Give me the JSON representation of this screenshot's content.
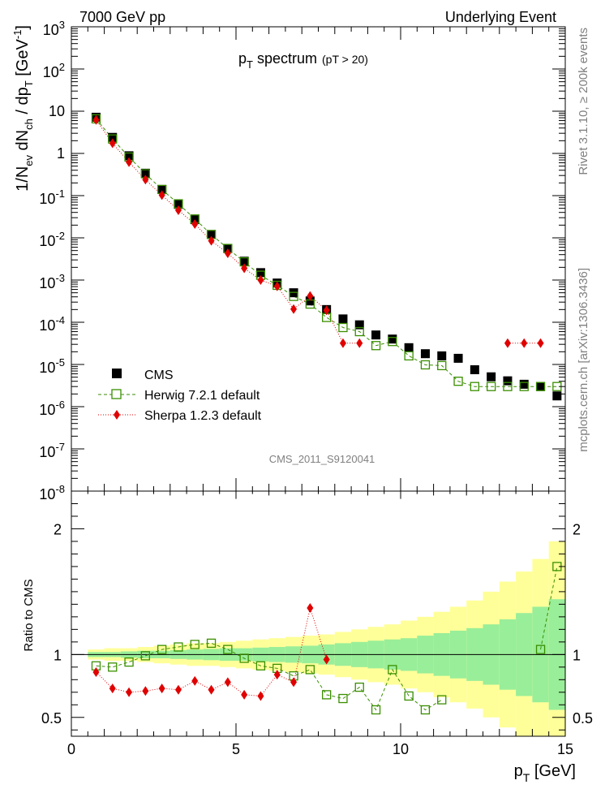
{
  "header": {
    "left": "7000 GeV pp",
    "right": "Underlying Event"
  },
  "side_labels": {
    "rivet": "Rivet 3.1.10, ≥ 200k events",
    "mcplots": "mcplots.cern.ch [arXiv:1306.3436]"
  },
  "chart_data": {
    "type": "scatter",
    "title": "p_T spectrum (pT > 20)",
    "title_main": "p",
    "title_sub": "T",
    "title_rest": " spectrum",
    "title_note": "(pT > 20)",
    "analysis_id": "CMS_2011_S9120041",
    "xlabel": "p_T [GeV]",
    "xlabel_main": "p",
    "xlabel_sub": "T",
    "xlabel_unit": " [GeV]",
    "ylabel": "1/N_ev dN_ch / dp_T [GeV^-1]",
    "ratio_ylabel": "Ratio to CMS",
    "xlim": [
      0,
      15
    ],
    "ylim": [
      1e-08,
      1000
    ],
    "ratio_ylim": [
      0.35,
      2.3
    ],
    "x_ticks": [
      0,
      5,
      10,
      15
    ],
    "ratio_ticks": [
      0.5,
      1,
      2
    ],
    "y_ticks": [
      {
        "exp": -8,
        "label": "10",
        "sup": "-8"
      },
      {
        "exp": -7,
        "label": "10",
        "sup": "-7"
      },
      {
        "exp": -6,
        "label": "10",
        "sup": "-6"
      },
      {
        "exp": -5,
        "label": "10",
        "sup": "-5"
      },
      {
        "exp": -4,
        "label": "10",
        "sup": "-4"
      },
      {
        "exp": -3,
        "label": "10",
        "sup": "-3"
      },
      {
        "exp": -2,
        "label": "10",
        "sup": "-2"
      },
      {
        "exp": -1,
        "label": "10",
        "sup": "-1"
      },
      {
        "exp": 0,
        "label": "1",
        "sup": ""
      },
      {
        "exp": 1,
        "label": "10",
        "sup": ""
      },
      {
        "exp": 2,
        "label": "10",
        "sup": "2"
      },
      {
        "exp": 3,
        "label": "10",
        "sup": "3"
      }
    ],
    "legend": {
      "position": "bottom-left",
      "entries": [
        "CMS",
        "Herwig 7.2.1 default",
        "Sherpa 1.2.3 default"
      ]
    },
    "colors": {
      "data": "#000000",
      "herwig": "#3a8e00",
      "sherpa": "#e00000",
      "band_inner": "#99ee99",
      "band_outer": "#ffff99"
    },
    "x": [
      0.75,
      1.25,
      1.75,
      2.25,
      2.75,
      3.25,
      3.75,
      4.25,
      4.75,
      5.25,
      5.75,
      6.25,
      6.75,
      7.25,
      7.75,
      8.25,
      8.75,
      9.25,
      9.75,
      10.25,
      10.75,
      11.25,
      11.75,
      12.25,
      12.75,
      13.25,
      13.75,
      14.25,
      14.75
    ],
    "series": [
      {
        "name": "CMS",
        "values": [
          7.2,
          2.4,
          0.88,
          0.34,
          0.14,
          0.062,
          0.027,
          0.012,
          0.0056,
          0.0028,
          0.0015,
          0.00085,
          0.0005,
          0.00032,
          0.0002,
          0.00012,
          8.7e-05,
          5e-05,
          4e-05,
          2.5e-05,
          1.8e-05,
          1.6e-05,
          1.4e-05,
          7.5e-06,
          5.1e-06,
          4.1e-06,
          3.4e-06,
          3e-06,
          1.8e-06
        ]
      },
      {
        "name": "Herwig 7.2.1 default",
        "values": [
          6.6,
          2.2,
          0.82,
          0.33,
          0.14,
          0.064,
          0.028,
          0.012,
          0.0056,
          0.0027,
          0.0013,
          0.00075,
          0.00041,
          0.00027,
          0.00013,
          7.5e-05,
          6e-05,
          2.8e-05,
          3.5e-05,
          1.6e-05,
          9.8e-06,
          9.4e-06,
          4e-06,
          3e-06,
          3e-06,
          3e-06,
          3e-06,
          3e-06,
          3e-06
        ]
      },
      {
        "name": "Sherpa 1.2.3 default",
        "values": [
          6.2,
          1.74,
          0.62,
          0.24,
          0.103,
          0.045,
          0.0212,
          0.0085,
          0.0043,
          0.0019,
          0.001,
          0.00071,
          0.000205,
          0.00042,
          0.000192,
          3.2e-05,
          3.2e-05,
          null,
          null,
          null,
          null,
          null,
          null,
          null,
          null,
          3.2e-05,
          3.2e-05,
          3.2e-05,
          null
        ]
      }
    ],
    "ratio_series": [
      {
        "name": "Herwig 7.2.1 default",
        "values": [
          0.91,
          0.9,
          0.94,
          0.99,
          1.04,
          1.06,
          1.08,
          1.09,
          1.04,
          0.97,
          0.91,
          0.89,
          0.83,
          0.88,
          0.68,
          0.65,
          0.74,
          0.56,
          0.88,
          0.67,
          0.56,
          0.64,
          null,
          null,
          null,
          null,
          null,
          1.04,
          1.7
        ]
      },
      {
        "name": "Sherpa 1.2.3 default",
        "values": [
          0.86,
          0.73,
          0.7,
          0.71,
          0.73,
          0.72,
          0.79,
          0.72,
          0.78,
          0.68,
          0.67,
          0.84,
          0.78,
          1.37,
          0.96,
          null,
          null,
          null,
          null,
          null,
          null,
          null,
          null,
          null,
          null,
          null,
          null,
          null,
          null
        ]
      }
    ],
    "uncertainty_band": {
      "inner": [
        0.02,
        0.02,
        0.025,
        0.03,
        0.03,
        0.035,
        0.04,
        0.045,
        0.05,
        0.05,
        0.055,
        0.06,
        0.065,
        0.07,
        0.08,
        0.09,
        0.1,
        0.11,
        0.12,
        0.13,
        0.15,
        0.17,
        0.19,
        0.21,
        0.24,
        0.28,
        0.33,
        0.38,
        0.44
      ],
      "outer": [
        0.04,
        0.05,
        0.05,
        0.06,
        0.07,
        0.08,
        0.09,
        0.09,
        0.1,
        0.11,
        0.12,
        0.13,
        0.14,
        0.15,
        0.16,
        0.18,
        0.2,
        0.22,
        0.24,
        0.27,
        0.3,
        0.34,
        0.38,
        0.43,
        0.5,
        0.58,
        0.66,
        0.76,
        0.9
      ]
    }
  }
}
